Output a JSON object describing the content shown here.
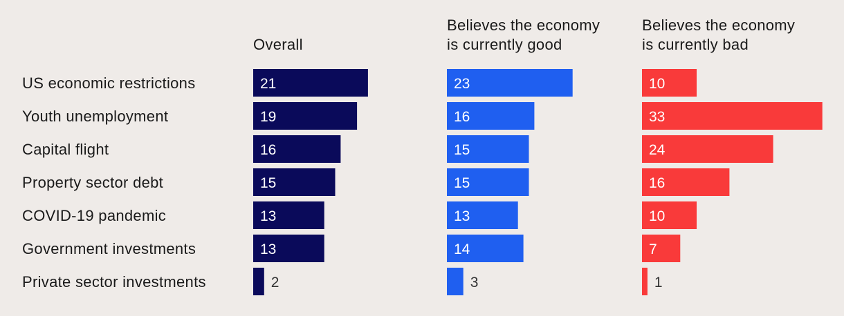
{
  "chart_data": {
    "type": "bar",
    "orientation": "horizontal",
    "categories": [
      "US economic restrictions",
      "Youth unemployment",
      "Capital flight",
      "Property sector debt",
      "COVID-19 pandemic",
      "Government investments",
      "Private sector investments"
    ],
    "series": [
      {
        "name": "Overall",
        "title_lines": [
          "Overall"
        ],
        "color": "#0a0a5a",
        "values": [
          21,
          19,
          16,
          15,
          13,
          13,
          2
        ]
      },
      {
        "name": "Believes the economy is currently good",
        "title_lines": [
          "Believes the economy",
          "is currently good"
        ],
        "color": "#1f5ff0",
        "values": [
          23,
          16,
          15,
          15,
          13,
          14,
          3
        ]
      },
      {
        "name": "Believes the economy is currently bad",
        "title_lines": [
          "Believes the economy",
          "is currently bad"
        ],
        "color": "#f93a3a",
        "values": [
          10,
          33,
          24,
          16,
          10,
          7,
          1
        ]
      }
    ],
    "grid": false,
    "legend": "none",
    "data_labels": true
  }
}
